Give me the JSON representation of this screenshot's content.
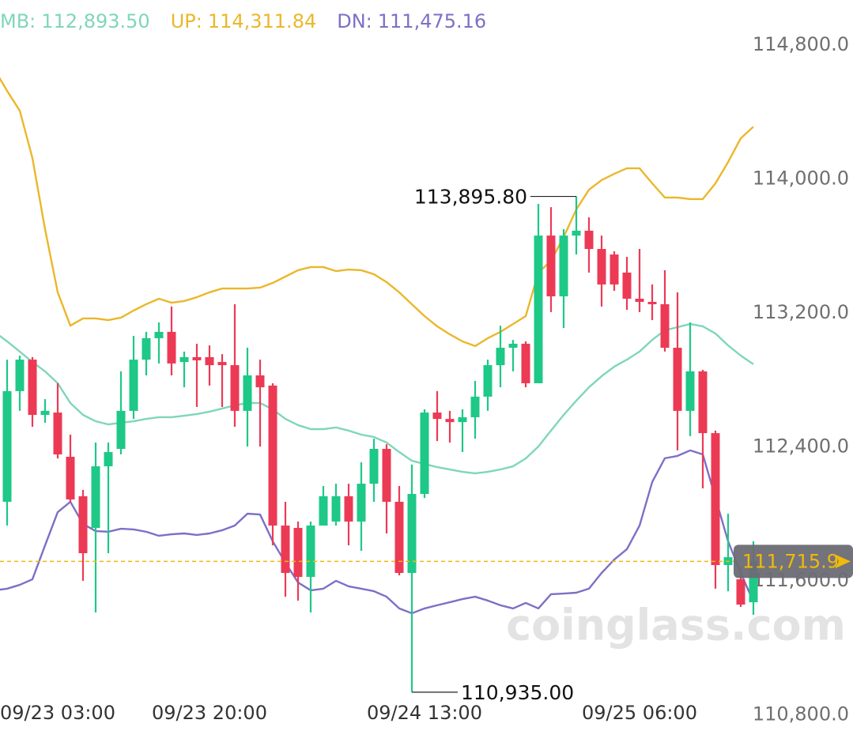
{
  "chart_data": {
    "type": "candlestick",
    "watermark": "coinglass.com",
    "categories": [
      "09/23 03:00",
      null,
      null,
      null,
      null,
      null,
      null,
      null,
      null,
      null,
      null,
      null,
      null,
      null,
      null,
      null,
      null,
      "09/23 20:00",
      null,
      null,
      null,
      null,
      null,
      null,
      null,
      null,
      null,
      null,
      null,
      null,
      null,
      null,
      null,
      null,
      "09/24 13:00",
      null,
      null,
      null,
      null,
      null,
      null,
      null,
      null,
      null,
      null,
      null,
      null,
      null,
      null,
      null,
      null,
      "09/25 06:00",
      null,
      null,
      null,
      null,
      null,
      null,
      null,
      null,
      null
    ],
    "open": [
      null,
      112072,
      112733,
      112921,
      112591,
      112605,
      112341,
      112105,
      111916,
      112284,
      112388,
      112615,
      112921,
      113049,
      113087,
      112907,
      112936,
      112936,
      112907,
      112888,
      112615,
      112827,
      112766,
      111930,
      111916,
      111623,
      111930,
      111954,
      112105,
      111954,
      112180,
      112388,
      112072,
      111647,
      112119,
      112605,
      112567,
      112548,
      112577,
      112700,
      112888,
      112992,
      113016,
      112780,
      113662,
      113299,
      113662,
      113691,
      113582,
      113549,
      113441,
      113285,
      113266,
      113252,
      112992,
      112615,
      112851,
      112482,
      111694,
      111609,
      111472
    ],
    "high": [
      null,
      112921,
      112945,
      112936,
      112685,
      112780,
      112473,
      112143,
      112426,
      112426,
      112851,
      113063,
      113087,
      113143,
      113238,
      112969,
      113016,
      113006,
      112954,
      113252,
      112992,
      112921,
      112780,
      112072,
      111954,
      111954,
      112166,
      112180,
      112180,
      112308,
      112449,
      112416,
      112166,
      112294,
      112624,
      112733,
      112615,
      112624,
      112794,
      112921,
      113124,
      113039,
      113030,
      113851,
      113832,
      113700,
      113895.8,
      113771,
      113662,
      113568,
      113535,
      113582,
      113370,
      113455,
      113323,
      113143,
      112860,
      112497,
      112001,
      111671,
      111836
    ],
    "low": [
      null,
      111930,
      112615,
      112520,
      112544,
      112331,
      112072,
      111600,
      111411,
      111765,
      112355,
      112567,
      112827,
      112898,
      112827,
      112756,
      112638,
      112766,
      112638,
      112520,
      112402,
      112402,
      111812,
      111505,
      111482,
      111411,
      111930,
      111930,
      111812,
      111779,
      112072,
      111883,
      111633,
      110935,
      112095,
      112435,
      112426,
      112369,
      112449,
      112615,
      112756,
      112851,
      112756,
      112780,
      113205,
      113110,
      113549,
      113441,
      113238,
      113332,
      113219,
      113205,
      113157,
      112969,
      112379,
      112464,
      112152,
      111553,
      111538,
      111444,
      111397
    ],
    "close": [
      null,
      112733,
      112921,
      112591,
      112615,
      112355,
      112086,
      111765,
      112284,
      112369,
      112615,
      112921,
      113049,
      113087,
      112898,
      112936,
      112917,
      112888,
      112888,
      112615,
      112827,
      112756,
      111930,
      111647,
      111623,
      111930,
      112105,
      112105,
      111954,
      112180,
      112388,
      112072,
      111647,
      112119,
      112605,
      112567,
      112548,
      112577,
      112700,
      112888,
      112992,
      113016,
      112780,
      113662,
      113299,
      113662,
      113691,
      113582,
      113370,
      113370,
      113285,
      113266,
      113252,
      112992,
      112615,
      112851,
      112482,
      111694,
      111741,
      111458,
      111715.9
    ],
    "up_color": "#1ec887",
    "down_color": "#ec3a55",
    "series": [
      {
        "name": "MB:",
        "legend_value": "112,893.50",
        "color": "#7fd6bb",
        "values": [
          113087,
          113030,
          112969,
          112907,
          112851,
          112780,
          112662,
          112591,
          112553,
          112534,
          112544,
          112553,
          112567,
          112577,
          112577,
          112586,
          112596,
          112610,
          112629,
          112648,
          112662,
          112662,
          112624,
          112567,
          112530,
          112506,
          112506,
          112516,
          112497,
          112473,
          112459,
          112426,
          112369,
          112317,
          112298,
          112279,
          112265,
          112251,
          112242,
          112251,
          112265,
          112284,
          112331,
          112402,
          112497,
          112591,
          112676,
          112756,
          112822,
          112879,
          112921,
          112969,
          113039,
          113096,
          113115,
          113134,
          113120,
          113077,
          113006,
          112945,
          112893.5
        ]
      },
      {
        "name": "UP:",
        "legend_value": "114,311.84",
        "color": "#ebb72a",
        "values": [
          114654,
          114526,
          114408,
          114125,
          113700,
          113323,
          113124,
          113167,
          113167,
          113157,
          113172,
          113214,
          113252,
          113285,
          113261,
          113271,
          113294,
          113323,
          113346,
          113346,
          113346,
          113351,
          113379,
          113417,
          113455,
          113474,
          113474,
          113450,
          113459,
          113455,
          113431,
          113384,
          113323,
          113252,
          113181,
          113120,
          113072,
          113030,
          113002,
          113049,
          113087,
          113134,
          113181,
          113441,
          113511,
          113653,
          113818,
          113936,
          113993,
          114031,
          114064,
          114064,
          113974,
          113889,
          113889,
          113880,
          113880,
          113974,
          114101,
          114243,
          114311.84
        ]
      },
      {
        "name": "DN:",
        "legend_value": "111,475.16",
        "color": "#7e6fc6",
        "values": [
          111543,
          111553,
          111576,
          111609,
          111812,
          112010,
          112072,
          111940,
          111897,
          111893,
          111911,
          111907,
          111893,
          111869,
          111878,
          111883,
          111874,
          111883,
          111902,
          111930,
          112001,
          111996,
          111836,
          111708,
          111590,
          111543,
          111553,
          111600,
          111567,
          111553,
          111538,
          111505,
          111435,
          111406,
          111435,
          111454,
          111472,
          111491,
          111505,
          111482,
          111454,
          111435,
          111468,
          111435,
          111520,
          111524,
          111529,
          111553,
          111647,
          111727,
          111789,
          111930,
          112190,
          112332,
          112346,
          112379,
          112355,
          112095,
          111836,
          111647,
          111475.16
        ]
      }
    ],
    "last_price": {
      "value": 111715.9,
      "label": "111,715.9",
      "color": "#f0b90b"
    },
    "annotations": [
      {
        "value": 113895.8,
        "label": "113,895.80"
      },
      {
        "value": 110935,
        "label": "110,935.00"
      }
    ],
    "ylim": [
      110703,
      115069
    ],
    "yticks": [
      {
        "value": 114800,
        "label": "114,800.0"
      },
      {
        "value": 114000,
        "label": "114,000.0"
      },
      {
        "value": 113200,
        "label": "113,200.0"
      },
      {
        "value": 112400,
        "label": "112,400.0"
      },
      {
        "value": 111600,
        "label": "111,600.0"
      },
      {
        "value": 110800,
        "label": "110,800.0"
      }
    ],
    "grid": false
  }
}
